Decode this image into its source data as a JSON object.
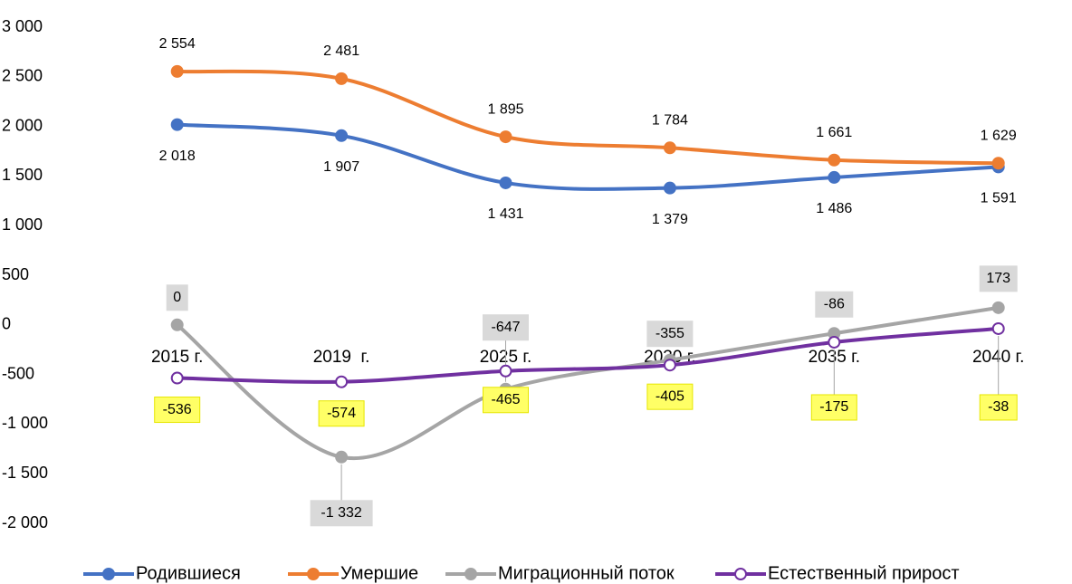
{
  "chart_data": {
    "type": "line",
    "categories": [
      "2015 г.",
      "2019  г.",
      "2025 г.",
      "2030 г.",
      "2035 г.",
      "2040 г."
    ],
    "series": [
      {
        "name": "Родившиеся",
        "color": "#4472c4",
        "values": [
          2018,
          1907,
          1431,
          1379,
          1486,
          1591
        ],
        "value_labels": [
          "2 018",
          "1 907",
          "1 431",
          "1 379",
          "1 486",
          "1 591"
        ]
      },
      {
        "name": "Умершие",
        "color": "#ed7d31",
        "values": [
          2554,
          2481,
          1895,
          1784,
          1661,
          1629
        ],
        "value_labels": [
          "2 554",
          "2 481",
          "1 895",
          "1 784",
          "1 661",
          "1 629"
        ]
      },
      {
        "name": "Миграционный поток",
        "color": "#a5a5a5",
        "values": [
          0,
          -1332,
          -647,
          -355,
          -86,
          173
        ],
        "value_labels": [
          "0",
          "-1 332",
          "-647",
          "-355",
          "-86",
          "173"
        ]
      },
      {
        "name": "Естественный прирост",
        "color": "#7030a0",
        "values": [
          -536,
          -574,
          -465,
          -405,
          -175,
          -38
        ],
        "value_labels": [
          "-536",
          "-574",
          "-465",
          "-405",
          "-175",
          "-38"
        ]
      }
    ],
    "ylim": [
      -2000,
      3000
    ],
    "yticks": [
      {
        "value": 3000,
        "label": "3 000"
      },
      {
        "value": 2500,
        "label": "2 500"
      },
      {
        "value": 2000,
        "label": "2 000"
      },
      {
        "value": 1500,
        "label": "1 500"
      },
      {
        "value": 1000,
        "label": "1 000"
      },
      500,
      0,
      -500,
      {
        "value": -1000,
        "label": "-1 000"
      },
      {
        "value": -1500,
        "label": "-1 500"
      },
      {
        "value": -2000,
        "label": "-2 000"
      }
    ],
    "grid": false
  }
}
